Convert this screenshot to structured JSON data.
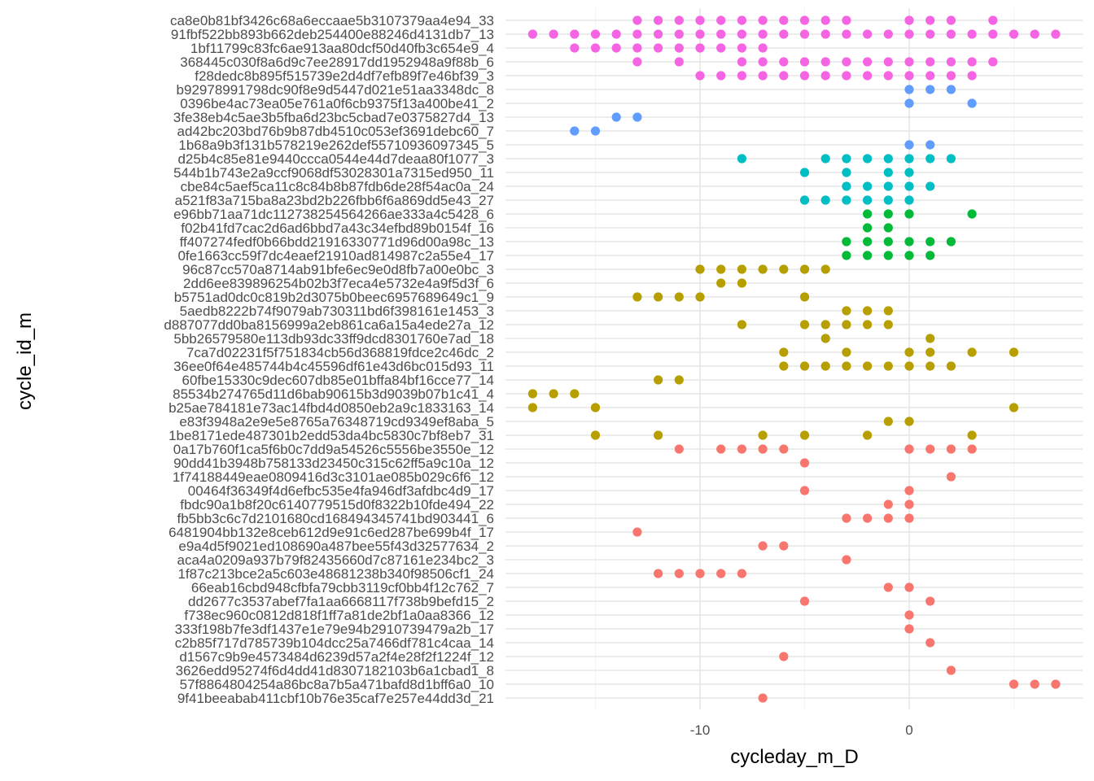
{
  "chart_data": {
    "type": "scatter",
    "title": "",
    "xlabel": "cycleday_m_D",
    "ylabel": "cycle_id_m",
    "xlim": [
      -18.15,
      7.15
    ],
    "x_ticks": [
      -10,
      0
    ],
    "grid": true,
    "legend": "none",
    "categories": [
      "ca8e0b81bf3426c68a6eccaae5b3107379aa4e94_33",
      "91fbf522bb893b662deb254400e88246d4131db7_13",
      "1bf11799c83fc6ae913aa80dcf50d40fb3c654e9_4",
      "368445c030f8a6d9c7ee28917dd1952948a9f88b_6",
      "f28dedc8b895f515739e2d4df7efb89f7e46bf39_3",
      "b92978991798dc90f8e9d5447d021e51aa3348dc_8",
      "0396be4ac73ea05e761a0f6cb9375f13a400be41_2",
      "3fe38eb4c5ae3b5fba6d23bc5cbad7e0375827d4_13",
      "ad42bc203bd76b9b87db4510c053ef3691debc60_7",
      "1b68a9b3f131b578219e262def55710936097345_5",
      "d25b4c85e81e9440ccca0544e44d7deaa80f1077_3",
      "544b1b743e2a9ccf9068df53028301a7315ed950_11",
      "cbe84c5aef5ca11c8c84b8b87fdb6de28f54ac0a_24",
      "a521f83a715ba8a23bd2b226fbb6f6a869dd5e43_27",
      "e96bb71aa71dc11273825456­4266ae333a4c5428_6",
      "f02b41fd7cac2d6ad6bbd7a43c34efbd89b0154f_16",
      "ff407274fedf0b66bdd21916330771d96d00a98c_13",
      "0fe1663cc59f7dc4eaef21910ad814987c2a55e4_17",
      "96c87cc570a8714ab91bfe6ec9e0d8fb7a00e0bc_3",
      "2dd6ee839896254b02b3f7eca4e5732e4a9f5d3f_6",
      "b5751ad0dc0c819b2d3075b0beec6957689649c1_9",
      "5aedb8222b74f9079ab730311bd6f398161e1453_3",
      "d887077dd0ba8156999a2eb861ca6a15a4ede27a_12",
      "5bb26579580e113db93dc33ff9dcd8301760e7ad_18",
      "7ca7d02231f5f751834cb56d368819fdce2c46dc_2",
      "36ee0f64e485744b4c45596df61e43d6bc015d93_11",
      "60fbe15330c9dec607db85e01bffa84bf16cce77_14",
      "85534b274765d11d6bab90615b3d9039b07b1c41_4",
      "b25ae784181e73ac14fbd4d0850eb2a9c1833163_14",
      "e83f3948a2e9e5e8765a76348719cd9349ef8aba_5",
      "1be8171ede487301b2edd53da4bc5830c7bf8eb7_31",
      "0a17b760f1ca5f6b0c7dd9a54526c5556be3550e_12",
      "90dd41b3948b758133d23450c315c62ff5a9c10a_12",
      "1f74188449eae0809416d3c3101ae085b029c6f6_12",
      "00464f36349f4d6efbc535e4fa946df3afdbc4d9_17",
      "fbdc90a1b8f20c6140779515d0f8322b10fde494_22",
      "fb5bb3c6c7d2101680cd168494345741bd903441_6",
      "6481904bb132e8ceb612d9e91c6ed287be699b4f_17",
      "e9a4d5f9021ed108690a487bee55f43d32577634_2",
      "aca4a0209a937b79f82435660d7c87161e234bc2_3",
      "1f87c213bce2a5c603e48681238b340f98506cf1_24",
      "66eab16cbd948cfbfa79cbb3119cf0bb4f12c762_7",
      "dd2677c3537abef7fa1aa6668117f738b9befd15_2",
      "f738ec960c0812d818f1ff7a81de2bf1a0aa8366_12",
      "333f198b7fe3df1437e1e79e94b2910739479a2b_17",
      "c2b85f717d785739b104dcc25a7466df781c4caa_14",
      "d1567c9b9e4573484d6239d57a2f4e28f2f1224f_12",
      "3626edd95274f6d4dd41d8307182103b6a1cbad1_8",
      "57f8864804254a86bc8a7b5a471bafd8d1bff6a0_10",
      "9f41beeabab411cbf10b76e35caf7e257e44dd3d_21"
    ],
    "colors": [
      "#F564E3",
      "#619CFF",
      "#00BFC4",
      "#00BA38",
      "#B79F00",
      "#F8766D"
    ],
    "points": [
      {
        "y": 0,
        "x": [
          -13,
          -12,
          -11,
          -10,
          -9,
          -8,
          -7,
          -6,
          -5,
          -4,
          -3,
          0,
          1,
          2,
          4
        ],
        "color": 0
      },
      {
        "y": 1,
        "x": [
          -18,
          -17,
          -16,
          -15,
          -14,
          -13,
          -12,
          -11,
          -10,
          -9,
          -8,
          -7,
          -6,
          -5,
          -4,
          -3,
          -2,
          -1,
          0,
          1,
          2,
          3,
          4,
          5,
          6,
          7
        ],
        "color": 0
      },
      {
        "y": 2,
        "x": [
          -16,
          -15,
          -14,
          -13,
          -12,
          -11,
          -10,
          -9,
          -8,
          -7
        ],
        "color": 0
      },
      {
        "y": 3,
        "x": [
          -13,
          -11,
          -8,
          -7,
          -6,
          -5,
          -4,
          -3,
          -2,
          -1,
          0,
          1,
          2,
          3,
          4
        ],
        "color": 0
      },
      {
        "y": 4,
        "x": [
          -10,
          -9,
          -8,
          -7,
          -6,
          -5,
          -4,
          -3,
          -2,
          -1,
          0,
          1,
          2,
          3
        ],
        "color": 0
      },
      {
        "y": 5,
        "x": [
          0,
          1,
          2
        ],
        "color": 1
      },
      {
        "y": 6,
        "x": [
          0,
          3
        ],
        "color": 1
      },
      {
        "y": 7,
        "x": [
          -14,
          -13
        ],
        "color": 1
      },
      {
        "y": 8,
        "x": [
          -16,
          -15
        ],
        "color": 1
      },
      {
        "y": 9,
        "x": [
          0,
          1
        ],
        "color": 1
      },
      {
        "y": 10,
        "x": [
          -8,
          -4,
          -3,
          -2,
          -1,
          0,
          1,
          2
        ],
        "color": 2
      },
      {
        "y": 11,
        "x": [
          -5,
          -3,
          -1,
          0
        ],
        "color": 2
      },
      {
        "y": 12,
        "x": [
          -3,
          -2,
          -1,
          0,
          1
        ],
        "color": 2
      },
      {
        "y": 13,
        "x": [
          -5,
          -4,
          -3,
          -2,
          -1,
          0
        ],
        "color": 2
      },
      {
        "y": 14,
        "x": [
          -2,
          -1,
          0,
          3
        ],
        "color": 3
      },
      {
        "y": 15,
        "x": [
          -2,
          -1
        ],
        "color": 3
      },
      {
        "y": 16,
        "x": [
          -3,
          -2,
          -1,
          0,
          1,
          2
        ],
        "color": 3
      },
      {
        "y": 17,
        "x": [
          -3,
          -2,
          -1,
          0,
          1
        ],
        "color": 3
      },
      {
        "y": 18,
        "x": [
          -10,
          -9,
          -8,
          -7,
          -6,
          -5,
          -4
        ],
        "color": 4
      },
      {
        "y": 19,
        "x": [
          -9,
          -8
        ],
        "color": 4
      },
      {
        "y": 20,
        "x": [
          -13,
          -12,
          -11,
          -10,
          -5
        ],
        "color": 4
      },
      {
        "y": 21,
        "x": [
          -3,
          -2,
          -1
        ],
        "color": 4
      },
      {
        "y": 22,
        "x": [
          -8,
          -5,
          -4,
          -3,
          -2,
          -1
        ],
        "color": 4
      },
      {
        "y": 23,
        "x": [
          -4,
          1
        ],
        "color": 4
      },
      {
        "y": 24,
        "x": [
          -6,
          -3,
          0,
          1,
          3,
          5
        ],
        "color": 4
      },
      {
        "y": 25,
        "x": [
          -6,
          -5,
          -4,
          -3,
          -2,
          -1,
          0,
          1,
          2
        ],
        "color": 4
      },
      {
        "y": 26,
        "x": [
          -12,
          -11
        ],
        "color": 4
      },
      {
        "y": 27,
        "x": [
          -18,
          -17,
          -16
        ],
        "color": 4
      },
      {
        "y": 28,
        "x": [
          -18,
          -15,
          5
        ],
        "color": 4
      },
      {
        "y": 29,
        "x": [
          -1,
          0
        ],
        "color": 4
      },
      {
        "y": 30,
        "x": [
          -15,
          -12,
          -7,
          -5,
          -2,
          3
        ],
        "color": 4
      },
      {
        "y": 31,
        "x": [
          -11,
          -9,
          -8,
          -7,
          -6,
          0,
          1,
          2,
          3
        ],
        "color": 5
      },
      {
        "y": 32,
        "x": [
          -5
        ],
        "color": 5
      },
      {
        "y": 33,
        "x": [
          2
        ],
        "color": 5
      },
      {
        "y": 34,
        "x": [
          -5,
          0
        ],
        "color": 5
      },
      {
        "y": 35,
        "x": [
          -1,
          0
        ],
        "color": 5
      },
      {
        "y": 36,
        "x": [
          -3,
          -2,
          -1,
          0
        ],
        "color": 5
      },
      {
        "y": 37,
        "x": [
          -13
        ],
        "color": 5
      },
      {
        "y": 38,
        "x": [
          -7,
          -6
        ],
        "color": 5
      },
      {
        "y": 39,
        "x": [
          -3
        ],
        "color": 5
      },
      {
        "y": 40,
        "x": [
          -12,
          -11,
          -10,
          -9,
          -8
        ],
        "color": 5
      },
      {
        "y": 41,
        "x": [
          -1,
          0
        ],
        "color": 5
      },
      {
        "y": 42,
        "x": [
          -5,
          1
        ],
        "color": 5
      },
      {
        "y": 43,
        "x": [
          0
        ],
        "color": 5
      },
      {
        "y": 44,
        "x": [
          0
        ],
        "color": 5
      },
      {
        "y": 45,
        "x": [
          1
        ],
        "color": 5
      },
      {
        "y": 46,
        "x": [
          -6
        ],
        "color": 5
      },
      {
        "y": 47,
        "x": [
          2
        ],
        "color": 5
      },
      {
        "y": 48,
        "x": [
          5,
          6,
          7
        ],
        "color": 5
      },
      {
        "y": 49,
        "x": [
          -7
        ],
        "color": 5
      }
    ]
  }
}
